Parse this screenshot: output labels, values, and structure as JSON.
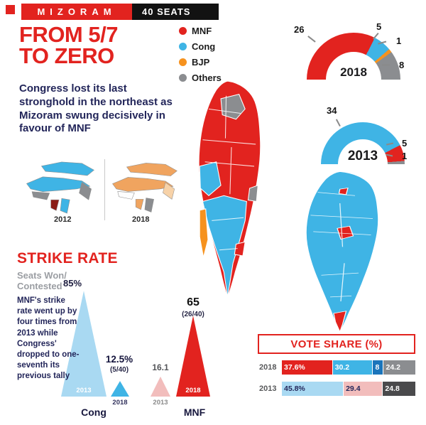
{
  "topbar": {
    "title": "MIZORAM",
    "seats": "40 SEATS"
  },
  "headline": {
    "line1": "FROM 5/7",
    "line2": "TO ZERO"
  },
  "intro": "Congress lost its last stronghold in the northeast as Mizoram swung decisively in favour of MNF",
  "legend": [
    {
      "label": "MNF"
    },
    {
      "label": "Cong"
    },
    {
      "label": "BJP"
    },
    {
      "label": "Others"
    }
  ],
  "colors": {
    "mnf": "#e2231f",
    "cong": "#3fb4e5",
    "bjp": "#f6921e",
    "others": "#8b8d90",
    "cong_pale": "#a9d9f2",
    "mnf_pale": "#f2bdbc",
    "dark_gray": "#4a4a4c",
    "mid_blue": "#1b75bb",
    "navy": "#23265a",
    "gray_text": "#9b9ea3",
    "dark_red": "#8c1d16",
    "tan": "#f0a45f",
    "light_tan": "#f7d2a8"
  },
  "maps": {
    "ne_2012_label": "2012",
    "ne_2018_label": "2018"
  },
  "strike": {
    "title": "STRIKE RATE",
    "subtitle1": "Seats Won/",
    "subtitle2": "Contested",
    "body": "MNF's strike rate went up by four times from 2013 while Congress' dropped to one-seventh its previous tally"
  },
  "chart_data": [
    {
      "type": "pie",
      "variant": "half-donut",
      "title": "2018",
      "total": 40,
      "segments": [
        {
          "name": "MNF",
          "value": 26,
          "color": "#e2231f"
        },
        {
          "name": "Cong",
          "value": 5,
          "color": "#3fb4e5"
        },
        {
          "name": "BJP",
          "value": 1,
          "color": "#f6921e"
        },
        {
          "name": "Others",
          "value": 8,
          "color": "#8b8d90"
        }
      ]
    },
    {
      "type": "pie",
      "variant": "half-donut",
      "title": "2013",
      "total": 40,
      "segments": [
        {
          "name": "Cong",
          "value": 34,
          "color": "#3fb4e5"
        },
        {
          "name": "MNF",
          "value": 5,
          "color": "#e2231f"
        },
        {
          "name": "Others",
          "value": 1,
          "color": "#8b8d90"
        }
      ]
    },
    {
      "type": "triangle",
      "title": "STRIKE RATE",
      "ylabel": "Seats Won/Contested",
      "groups": [
        {
          "name": "Cong",
          "items": [
            {
              "year": "2013",
              "value": 85,
              "display": "85%",
              "sub": "",
              "color": "#a9d9f2"
            },
            {
              "year": "2018",
              "value": 12.5,
              "display": "12.5%",
              "sub": "(5/40)",
              "color": "#3fb4e5"
            }
          ]
        },
        {
          "name": "MNF",
          "items": [
            {
              "year": "2013",
              "value": 16.1,
              "display": "16.1",
              "sub": "",
              "color": "#f2bdbc"
            },
            {
              "year": "2018",
              "value": 65,
              "display": "65",
              "sub": "(26/40)",
              "color": "#e2231f"
            }
          ]
        }
      ]
    },
    {
      "type": "bar",
      "variant": "stacked-horizontal",
      "title": "VOTE SHARE (%)",
      "xlim": [
        0,
        100
      ],
      "rows": [
        {
          "year": "2018",
          "segments": [
            {
              "name": "MNF",
              "label": "37.6%",
              "value": 37.6,
              "color": "#e2231f",
              "text": "#ffffff"
            },
            {
              "name": "Cong",
              "label": "30.2",
              "value": 30.2,
              "color": "#3fb4e5",
              "text": "#ffffff"
            },
            {
              "name": "BJP",
              "label": "8",
              "value": 8,
              "color": "#1b75bb",
              "text": "#ffffff"
            },
            {
              "name": "Others",
              "label": "24.2",
              "value": 24.2,
              "color": "#8b8d90",
              "text": "#ffffff"
            }
          ]
        },
        {
          "year": "2013",
          "segments": [
            {
              "name": "Cong",
              "label": "45.8%",
              "value": 45.8,
              "color": "#a9d9f2",
              "text": "#23265a"
            },
            {
              "name": "MNF",
              "label": "29.4",
              "value": 29.4,
              "color": "#f2bdbc",
              "text": "#23265a"
            },
            {
              "name": "Others",
              "label": "24.8",
              "value": 24.8,
              "color": "#4a4a4c",
              "text": "#ffffff"
            }
          ]
        }
      ]
    }
  ]
}
